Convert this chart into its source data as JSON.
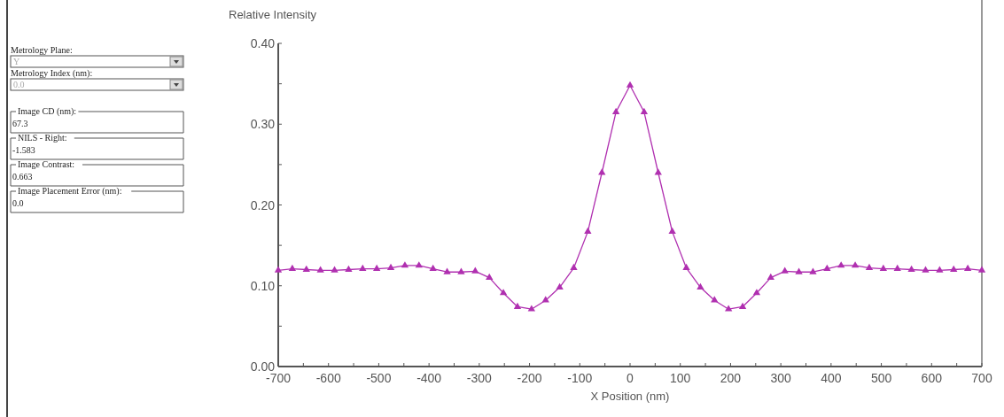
{
  "chart_data": [
    {
      "type": "other",
      "annotations": [
        "Metrology Plane:",
        "Y",
        "Metrology Index (nm):",
        "0.0",
        "Image CD (nm):",
        "67.3",
        "NILS - Right:",
        "-1.583",
        "Image Contrast:",
        "0.663",
        "Image Placement Error (nm):",
        "0.0"
      ]
    },
    {
      "type": "line",
      "ylabel": "Relative Intensity",
      "xlabel": "X Position (nm)",
      "x": [
        -700,
        -672,
        -644,
        -616,
        -588,
        -560,
        -532,
        -504,
        -476,
        -448,
        -420,
        -392,
        -364,
        -336,
        -308,
        -280,
        -252,
        -224,
        -196,
        -168,
        -140,
        -112,
        -84,
        -56,
        -28,
        0,
        28,
        56,
        84,
        112,
        140,
        168,
        196,
        224,
        252,
        280,
        308,
        336,
        364,
        392,
        420,
        448,
        476,
        504,
        532,
        560,
        588,
        616,
        644,
        672,
        700
      ],
      "series": [
        {
          "color": "#b030b0",
          "values": [
            0.119,
            0.121,
            0.12,
            0.119,
            0.119,
            0.12,
            0.121,
            0.121,
            0.122,
            0.125,
            0.125,
            0.121,
            0.117,
            0.117,
            0.118,
            0.11,
            0.091,
            0.074,
            0.071,
            0.082,
            0.098,
            0.122,
            0.167,
            0.24,
            0.315,
            0.348,
            0.315,
            0.24,
            0.167,
            0.122,
            0.098,
            0.082,
            0.071,
            0.074,
            0.091,
            0.11,
            0.118,
            0.117,
            0.117,
            0.121,
            0.125,
            0.125,
            0.122,
            0.121,
            0.121,
            0.12,
            0.119,
            0.119,
            0.12,
            0.121,
            0.119
          ]
        }
      ],
      "xlim": [
        -700,
        700
      ],
      "xticks": [
        -700,
        {
          "value": -650,
          "label": null
        },
        -600,
        {
          "value": -550,
          "label": null
        },
        -500,
        {
          "value": -450,
          "label": null
        },
        -400,
        {
          "value": -350,
          "label": null
        },
        -300,
        {
          "value": -250,
          "label": null
        },
        -200,
        {
          "value": -150,
          "label": null
        },
        -100,
        {
          "value": -50,
          "label": null
        },
        0,
        {
          "value": 50,
          "label": null
        },
        100,
        {
          "value": 150,
          "label": null
        },
        200,
        {
          "value": 250,
          "label": null
        },
        300,
        {
          "value": 350,
          "label": null
        },
        400,
        {
          "value": 450,
          "label": null
        },
        500,
        {
          "value": 550,
          "label": null
        },
        600,
        {
          "value": 650,
          "label": null
        },
        700
      ],
      "ylim": [
        0,
        0.4
      ],
      "yticks": [
        {
          "value": 0,
          "label": "0.00"
        },
        {
          "value": 0.05,
          "label": null
        },
        {
          "value": 0.1,
          "label": "0.10"
        },
        {
          "value": 0.15,
          "label": null
        },
        {
          "value": 0.2,
          "label": "0.20"
        },
        {
          "value": 0.25,
          "label": null
        },
        {
          "value": 0.3,
          "label": "0.30"
        },
        {
          "value": 0.35,
          "label": null
        },
        {
          "value": 0.4,
          "label": "0.40"
        }
      ],
      "grid": false,
      "marker": "triangle",
      "line_style": "solid"
    }
  ]
}
